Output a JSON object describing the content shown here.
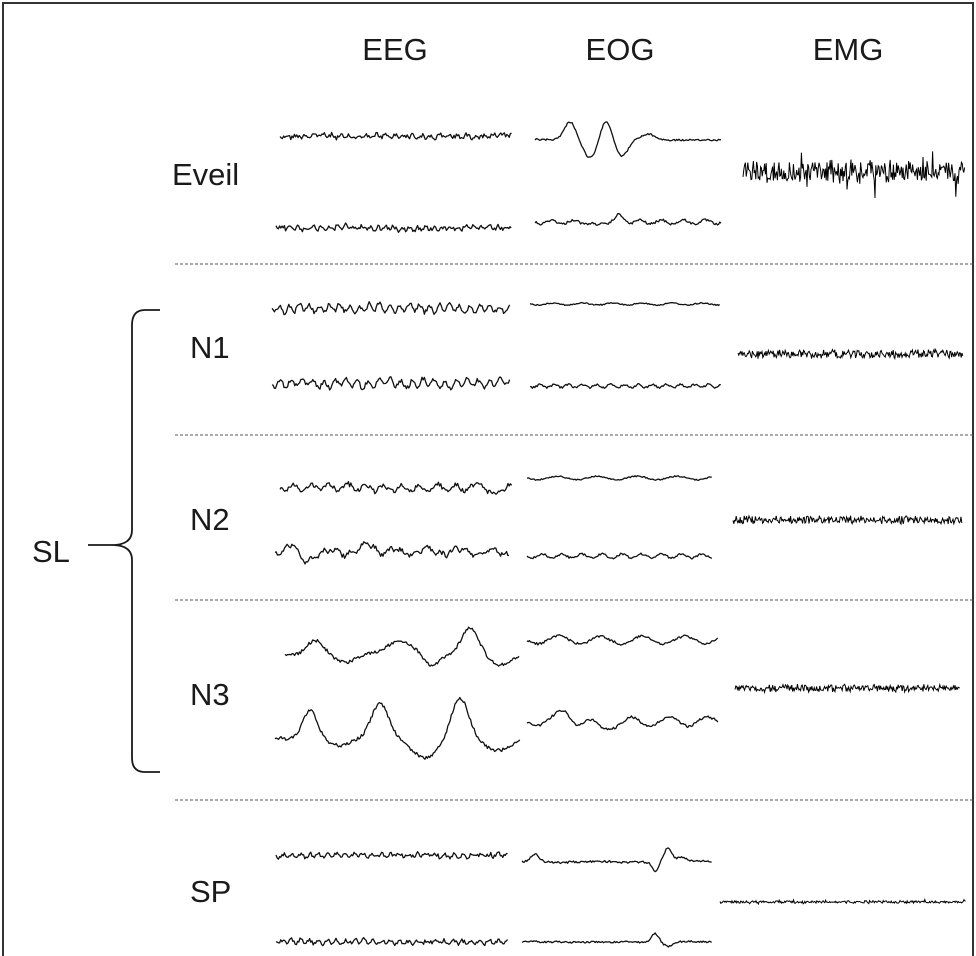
{
  "columns": [
    "EEG",
    "EOG",
    "EMG"
  ],
  "stages": [
    {
      "label": "Eveil"
    },
    {
      "label": "N1"
    },
    {
      "label": "N2"
    },
    {
      "label": "N3"
    },
    {
      "label": "SP"
    }
  ],
  "group": {
    "label": "SL"
  },
  "colors": {
    "trace": "#111111",
    "separator": "#555555",
    "border": "#333333"
  }
}
